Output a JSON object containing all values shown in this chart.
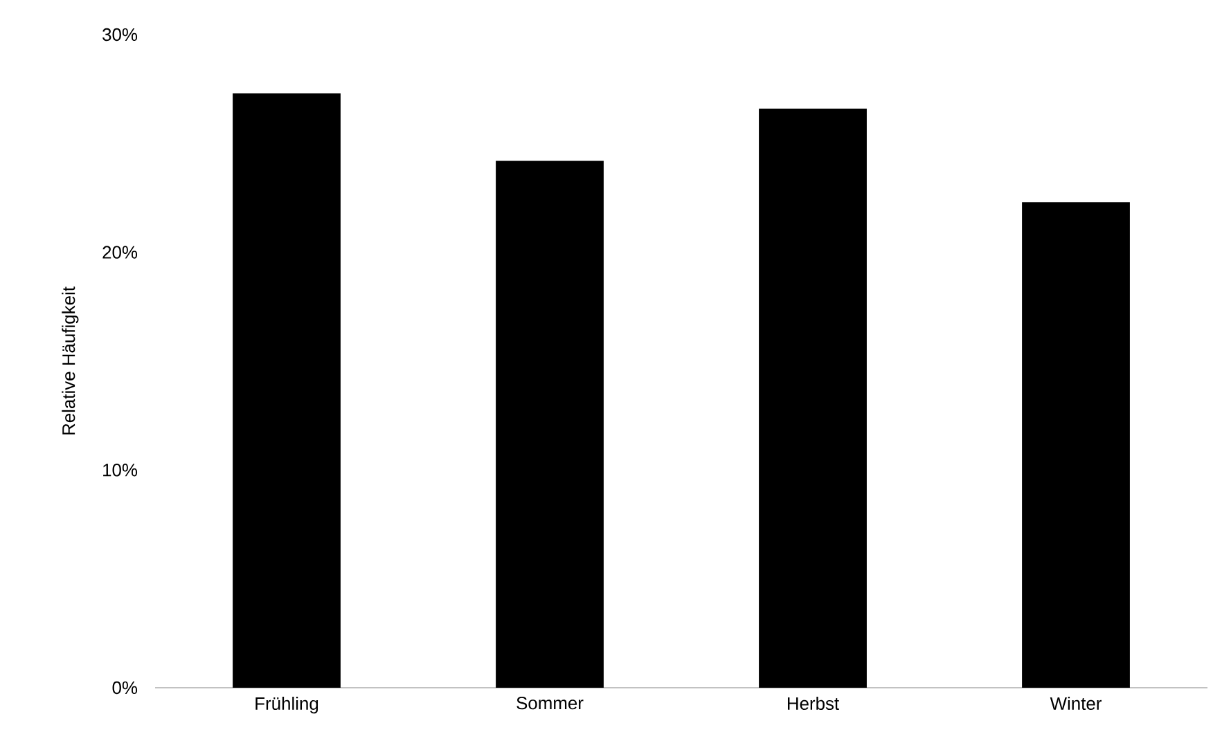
{
  "chart_data": {
    "type": "bar",
    "ylabel": "Relative Häufigkeit",
    "categories": [
      "Frühling",
      "Sommer",
      "Herbst",
      "Winter"
    ],
    "values": [
      27.3,
      24.2,
      26.6,
      22.3
    ],
    "color": "#000000",
    "ylim": [
      0,
      30
    ],
    "yticks": [
      {
        "value": 0,
        "label": "0%"
      },
      {
        "value": 10,
        "label": "10%"
      },
      {
        "value": 20,
        "label": "20%"
      },
      {
        "value": 30,
        "label": "30%"
      }
    ]
  }
}
